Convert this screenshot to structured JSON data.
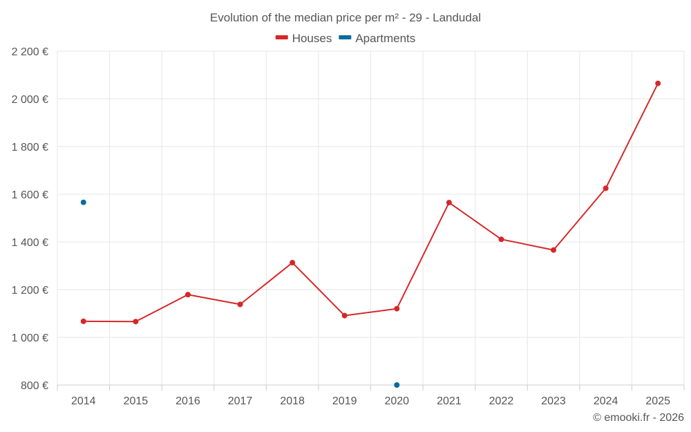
{
  "chart_data": {
    "type": "line",
    "title": "Evolution of the median price per m² - 29 - Landudal",
    "categories": [
      "2014",
      "2015",
      "2016",
      "2017",
      "2018",
      "2019",
      "2020",
      "2021",
      "2022",
      "2023",
      "2024",
      "2025"
    ],
    "series": [
      {
        "name": "Houses",
        "color": "#d62728",
        "values": [
          1067,
          1066,
          1179,
          1138,
          1313,
          1091,
          1120,
          1565,
          1411,
          1366,
          1625,
          2065
        ]
      },
      {
        "name": "Apartments",
        "color": "#0a6c9c",
        "values": [
          1566,
          null,
          null,
          null,
          null,
          null,
          800,
          null,
          null,
          null,
          null,
          null
        ]
      }
    ],
    "ylim": [
      800,
      2200
    ],
    "yticks": [
      800,
      1000,
      1200,
      1400,
      1600,
      1800,
      2000,
      2200
    ],
    "ytick_labels": [
      "800 €",
      "1 000 €",
      "1 200 €",
      "1 400 €",
      "1 600 €",
      "1 800 €",
      "2 000 €",
      "2 200 €"
    ],
    "xlabel": "",
    "ylabel": "",
    "grid": true,
    "legend_position": "top-center"
  },
  "credit": "© emooki.fr - 2026"
}
